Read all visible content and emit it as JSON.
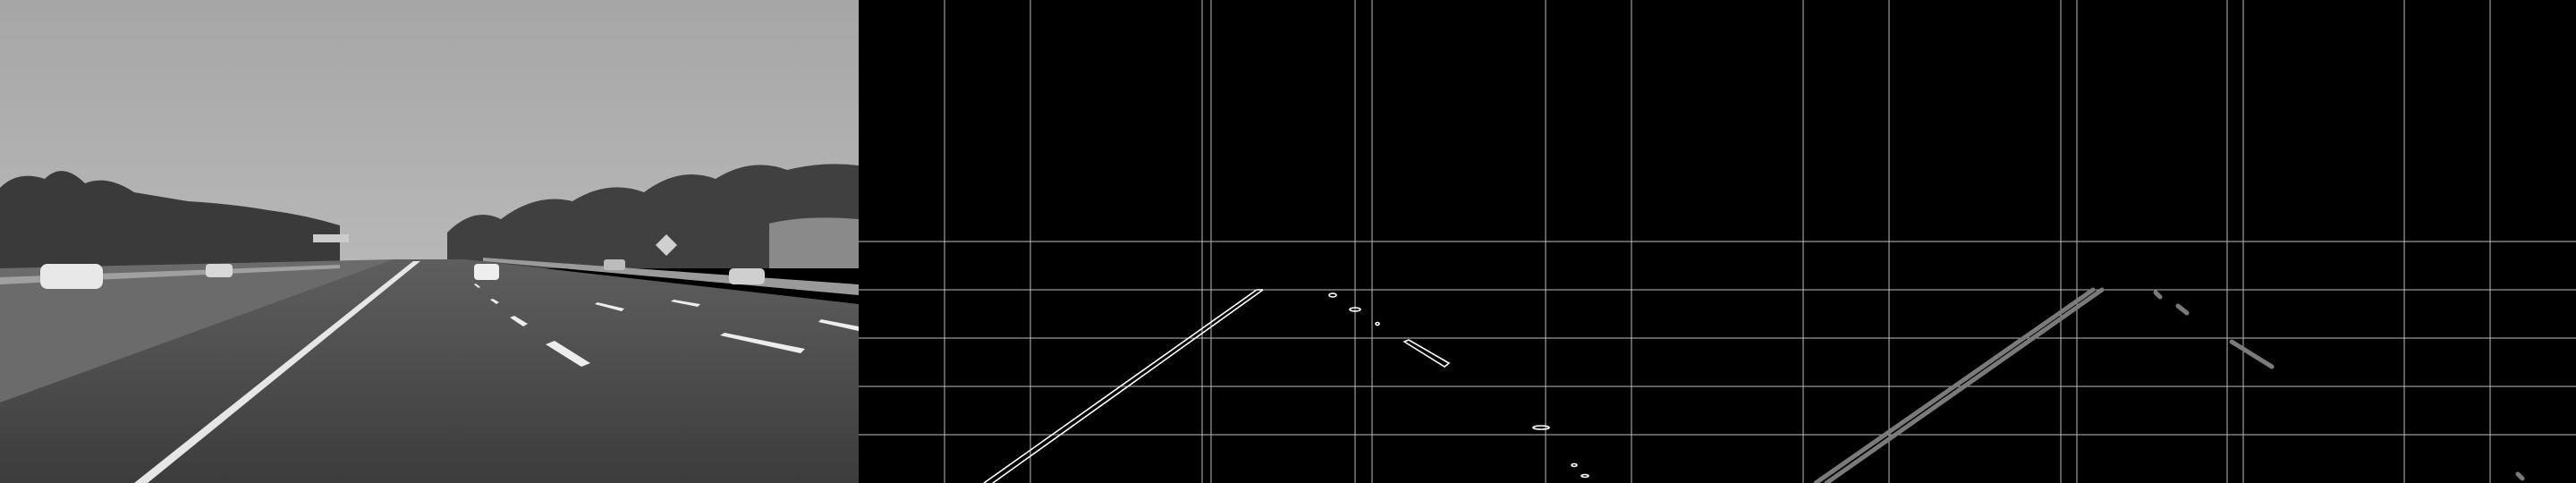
{
  "panels": [
    {
      "id": "road-photo",
      "kind": "grayscale road photograph"
    },
    {
      "id": "canny-edges",
      "kind": "edge map with grid"
    },
    {
      "id": "masked-edges",
      "kind": "region-masked edge map with grid"
    }
  ],
  "colors": {
    "sky": "#a3a3a3",
    "road": "#4a4a4a",
    "edge": "#ffffff",
    "masked_edge": "#7a7a7a",
    "grid": "#bdbdbd",
    "background": "#000000"
  }
}
